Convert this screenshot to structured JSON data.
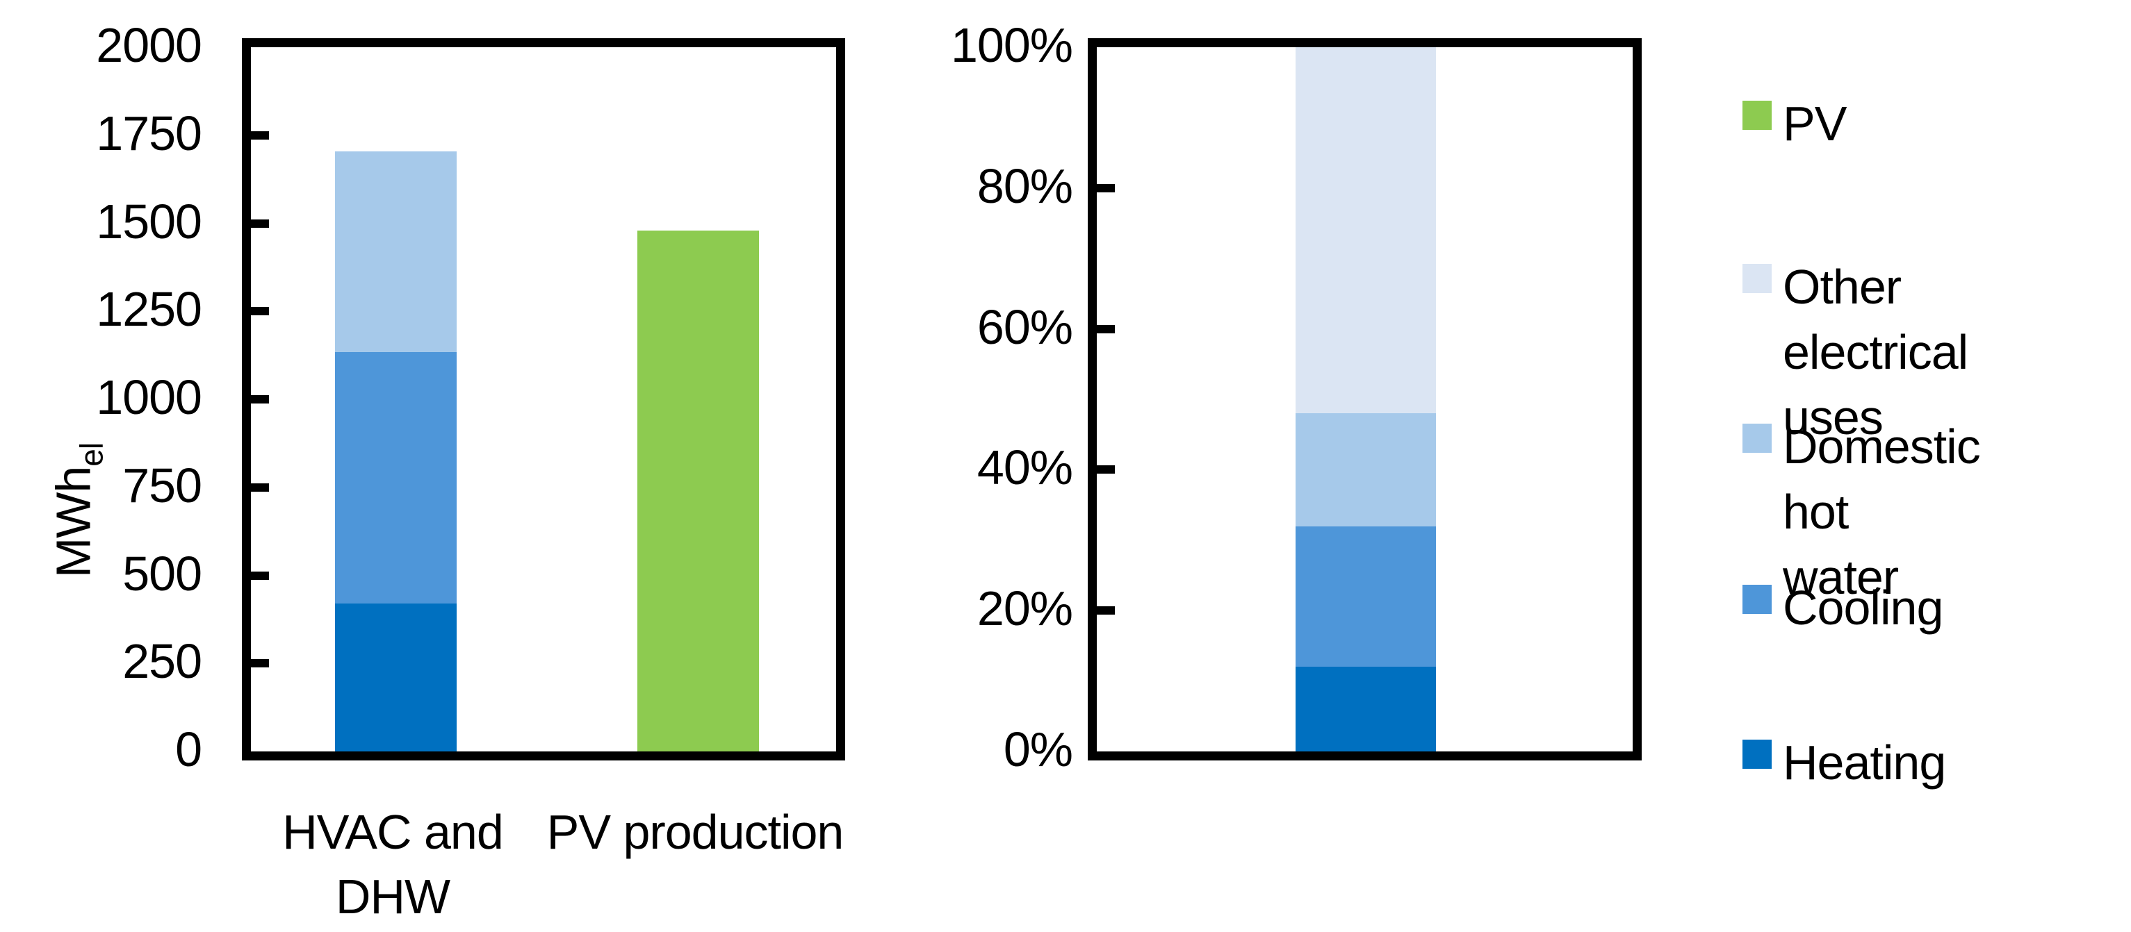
{
  "background_color": "#FFFFFF",
  "axis_color": "#000000",
  "chart_data": [
    {
      "type": "bar",
      "stacked": true,
      "title": "",
      "xlabel": "",
      "ylabel": "MWh",
      "ylabel_subscript": "el",
      "ylim": [
        0,
        2000
      ],
      "ytick_step": 250,
      "ytick_labels": [
        "2000",
        "1750",
        "1500",
        "1250",
        "1000",
        "750",
        "500",
        "250",
        "0"
      ],
      "grid": false,
      "categories": [
        "HVAC and DHW",
        "PV production"
      ],
      "category_label_lines": [
        [
          "HVAC and",
          "DHW"
        ],
        [
          "PV production"
        ]
      ],
      "series": [
        {
          "name": "Heating",
          "color": "#0070C0",
          "values": [
            420,
            0
          ]
        },
        {
          "name": "Cooling",
          "color": "#4E96D9",
          "values": [
            715,
            0
          ]
        },
        {
          "name": "Domestic hot water",
          "color": "#A6C9EA",
          "values": [
            570,
            0
          ]
        },
        {
          "name": "PV",
          "color": "#8DCB50",
          "values": [
            0,
            1480
          ]
        }
      ],
      "totals_note": {
        "hvac_and_dhw_total_mwh": 1705,
        "pv_production_mwh": 1480
      }
    },
    {
      "type": "bar",
      "stacked": true,
      "title": "",
      "xlabel": "",
      "ylabel": "",
      "ylim": [
        0,
        100
      ],
      "ytick_step": 20,
      "ytick_labels": [
        "100%",
        "80%",
        "60%",
        "40%",
        "20%",
        "0%"
      ],
      "grid": false,
      "categories": [
        ""
      ],
      "category_label_lines": [
        []
      ],
      "series": [
        {
          "name": "Heating",
          "color": "#0070C0",
          "values": [
            12
          ]
        },
        {
          "name": "Cooling",
          "color": "#4E96D9",
          "values": [
            20
          ]
        },
        {
          "name": "Domestic hot water",
          "color": "#A6C9EA",
          "values": [
            16
          ]
        },
        {
          "name": "Other electrical uses",
          "color": "#DBE5F3",
          "values": [
            52
          ]
        }
      ]
    }
  ],
  "legend": {
    "position": "right",
    "items": [
      {
        "label": "PV",
        "lines": [
          "PV"
        ],
        "color": "#8DCB50"
      },
      {
        "label": "Other electrical uses",
        "lines": [
          "Other electrical",
          "uses"
        ],
        "color": "#DBE5F3"
      },
      {
        "label": "Domestic hot water",
        "lines": [
          "Domestic hot",
          "water"
        ],
        "color": "#A6C9EA"
      },
      {
        "label": "Cooling",
        "lines": [
          "Cooling"
        ],
        "color": "#4E96D9"
      },
      {
        "label": "Heating",
        "lines": [
          "Heating"
        ],
        "color": "#0070C0"
      }
    ]
  }
}
